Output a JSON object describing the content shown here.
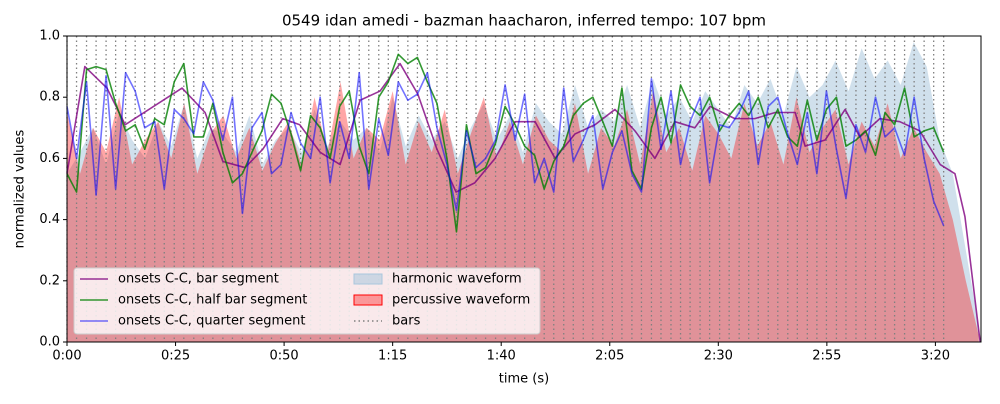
{
  "chart_data": {
    "type": "line",
    "title": "0549 idan amedi - bazman haacharon, inferred tempo: 107 bpm",
    "xlabel": "time (s)",
    "ylabel": "normalized values",
    "xlim": [
      0,
      210.5
    ],
    "ylim": [
      0,
      1
    ],
    "xticks": [
      {
        "value": 0,
        "label": "0:00"
      },
      {
        "value": 25,
        "label": "0:25"
      },
      {
        "value": 50,
        "label": "0:50"
      },
      {
        "value": 75,
        "label": "1:15"
      },
      {
        "value": 100,
        "label": "1:40"
      },
      {
        "value": 125,
        "label": "2:05"
      },
      {
        "value": 150,
        "label": "2:30"
      },
      {
        "value": 175,
        "label": "2:55"
      },
      {
        "value": 200,
        "label": "3:20"
      }
    ],
    "yticks": [
      {
        "value": 0,
        "label": "0.0"
      },
      {
        "value": 0.2,
        "label": "0.2"
      },
      {
        "value": 0.4,
        "label": "0.4"
      },
      {
        "value": 0.6,
        "label": "0.6"
      },
      {
        "value": 0.8,
        "label": "0.8"
      },
      {
        "value": 1,
        "label": "1.0"
      }
    ],
    "legend": "lower left",
    "x": [
      0,
      2.2,
      4.5,
      6.7,
      9.0,
      11.2,
      13.5,
      15.7,
      17.9,
      20.2,
      22.4,
      24.7,
      26.9,
      29.2,
      31.4,
      33.6,
      35.9,
      38.1,
      40.4,
      42.6,
      44.9,
      47.1,
      49.3,
      51.6,
      53.8,
      56.1,
      58.3,
      60.6,
      62.8,
      65.0,
      67.3,
      69.5,
      71.8,
      74.0,
      76.3,
      78.5,
      80.7,
      83.0,
      85.2,
      87.5,
      89.7,
      92.0,
      94.2,
      96.4,
      98.7,
      100.9,
      103.2,
      105.4,
      107.7,
      109.9,
      112.1,
      114.4,
      116.6,
      118.9,
      121.1,
      123.4,
      125.6,
      127.8,
      130.1,
      132.3,
      134.6,
      136.8,
      139.1,
      141.3,
      143.5,
      145.8,
      148.0,
      150.3,
      152.5,
      154.8,
      157.0,
      159.2,
      161.5,
      163.7,
      166.0,
      168.2,
      170.5,
      172.7,
      174.9,
      177.2,
      179.4,
      181.7,
      183.9,
      186.2,
      188.4,
      190.6,
      192.9,
      195.1,
      197.4,
      199.6,
      201.9
    ],
    "series": [
      {
        "name": "onsets C-C, bar segment",
        "kind": "line",
        "color": "#800080",
        "alpha": 0.8,
        "x": [
          0,
          4.1,
          9.2,
          13.4,
          26.5,
          31.8,
          35.9,
          41.0,
          45.1,
          49.7,
          53.6,
          58.3,
          62.9,
          67.5,
          72.1,
          76.7,
          80.8,
          85.2,
          89.6,
          93.9,
          98.6,
          103.2,
          107.8,
          112.4,
          117.0,
          121.6,
          126.2,
          130.8,
          135.4,
          140.0,
          144.6,
          148.1,
          153.8,
          158.4,
          163.1,
          167.7,
          170.0,
          174.6,
          179.2,
          182.6,
          187.2,
          191.8,
          196.4,
          201.1,
          204.5,
          206.8,
          210.3
        ],
        "values": [
          0.55,
          0.9,
          0.83,
          0.71,
          0.83,
          0.75,
          0.59,
          0.57,
          0.63,
          0.73,
          0.71,
          0.62,
          0.58,
          0.79,
          0.82,
          0.91,
          0.81,
          0.63,
          0.49,
          0.52,
          0.6,
          0.72,
          0.72,
          0.6,
          0.68,
          0.71,
          0.76,
          0.69,
          0.6,
          0.72,
          0.7,
          0.77,
          0.73,
          0.73,
          0.75,
          0.75,
          0.64,
          0.66,
          0.76,
          0.67,
          0.73,
          0.72,
          0.69,
          0.58,
          0.55,
          0.41,
          0.0
        ]
      },
      {
        "name": "onsets C-C, half bar segment",
        "kind": "line",
        "color": "#008000",
        "alpha": 0.8,
        "values": [
          0.55,
          0.49,
          0.89,
          0.9,
          0.89,
          0.78,
          0.69,
          0.71,
          0.63,
          0.73,
          0.71,
          0.85,
          0.91,
          0.67,
          0.67,
          0.78,
          0.62,
          0.52,
          0.55,
          0.62,
          0.69,
          0.81,
          0.78,
          0.68,
          0.56,
          0.74,
          0.7,
          0.6,
          0.77,
          0.82,
          0.64,
          0.55,
          0.8,
          0.85,
          0.94,
          0.91,
          0.93,
          0.85,
          0.78,
          0.6,
          0.36,
          0.71,
          0.55,
          0.57,
          0.65,
          0.77,
          0.71,
          0.64,
          0.61,
          0.5,
          0.59,
          0.64,
          0.74,
          0.78,
          0.8,
          0.72,
          0.64,
          0.83,
          0.56,
          0.5,
          0.7,
          0.8,
          0.65,
          0.84,
          0.77,
          0.74,
          0.8,
          0.69,
          0.74,
          0.78,
          0.74,
          0.8,
          0.7,
          0.76,
          0.67,
          0.64,
          0.79,
          0.66,
          0.76,
          0.8,
          0.64,
          0.66,
          0.69,
          0.61,
          0.75,
          0.71,
          0.83,
          0.67,
          0.69,
          0.7,
          0.62
        ]
      },
      {
        "name": "onsets C-C, quarter segment",
        "kind": "line",
        "color": "#0000ff",
        "alpha": 0.55,
        "values": [
          0.77,
          0.6,
          0.85,
          0.48,
          0.87,
          0.5,
          0.88,
          0.82,
          0.7,
          0.72,
          0.5,
          0.76,
          0.73,
          0.68,
          0.85,
          0.79,
          0.66,
          0.8,
          0.42,
          0.7,
          0.75,
          0.55,
          0.58,
          0.75,
          0.65,
          0.6,
          0.8,
          0.52,
          0.72,
          0.6,
          0.88,
          0.5,
          0.73,
          0.61,
          0.85,
          0.79,
          0.81,
          0.88,
          0.7,
          0.58,
          0.43,
          0.69,
          0.57,
          0.6,
          0.66,
          0.84,
          0.66,
          0.81,
          0.52,
          0.6,
          0.49,
          0.83,
          0.59,
          0.66,
          0.74,
          0.5,
          0.62,
          0.69,
          0.55,
          0.49,
          0.86,
          0.63,
          0.82,
          0.58,
          0.72,
          0.8,
          0.52,
          0.71,
          0.7,
          0.75,
          0.82,
          0.58,
          0.77,
          0.8,
          0.68,
          0.58,
          0.75,
          0.55,
          0.82,
          0.63,
          0.47,
          0.71,
          0.62,
          0.8,
          0.67,
          0.7,
          0.61,
          0.8,
          0.6,
          0.46,
          0.38
        ]
      },
      {
        "name": "harmonic waveform",
        "kind": "area",
        "color": "#a9c6dc",
        "alpha": 0.55,
        "x": [
          0,
          3,
          6,
          9,
          12,
          15,
          18,
          21,
          24,
          27,
          30,
          33,
          36,
          39,
          42,
          45,
          48,
          51,
          54,
          57,
          60,
          63,
          66,
          69,
          72,
          75,
          78,
          81,
          84,
          87,
          90,
          93,
          96,
          99,
          102,
          105,
          108,
          111,
          114,
          117,
          120,
          123,
          126,
          129,
          132,
          135,
          138,
          141,
          144,
          147,
          150,
          153,
          156,
          159,
          162,
          165,
          168,
          171,
          174,
          177,
          180,
          183,
          186,
          189,
          192,
          195,
          198,
          201,
          204,
          207,
          210
        ],
        "values": [
          0.55,
          0.62,
          0.7,
          0.58,
          0.75,
          0.66,
          0.6,
          0.72,
          0.64,
          0.78,
          0.6,
          0.7,
          0.68,
          0.62,
          0.74,
          0.58,
          0.66,
          0.7,
          0.62,
          0.76,
          0.64,
          0.72,
          0.66,
          0.7,
          0.62,
          0.8,
          0.64,
          0.74,
          0.66,
          0.72,
          0.6,
          0.7,
          0.78,
          0.66,
          0.74,
          0.62,
          0.78,
          0.72,
          0.68,
          0.84,
          0.7,
          0.76,
          0.72,
          0.84,
          0.7,
          0.86,
          0.74,
          0.8,
          0.72,
          0.82,
          0.76,
          0.7,
          0.84,
          0.78,
          0.86,
          0.74,
          0.9,
          0.8,
          0.84,
          0.92,
          0.82,
          0.96,
          0.86,
          0.92,
          0.84,
          0.98,
          0.9,
          0.66,
          0.55,
          0.3,
          0.05
        ]
      },
      {
        "name": "percussive waveform",
        "kind": "area",
        "color": "#ff0000",
        "alpha": 0.35,
        "x": [
          0,
          3,
          6,
          9,
          12,
          15,
          18,
          21,
          24,
          27,
          30,
          33,
          36,
          39,
          42,
          45,
          48,
          51,
          54,
          57,
          60,
          63,
          66,
          69,
          72,
          75,
          78,
          81,
          84,
          87,
          90,
          93,
          96,
          99,
          102,
          105,
          108,
          111,
          114,
          117,
          120,
          123,
          126,
          129,
          132,
          135,
          138,
          141,
          144,
          147,
          150,
          153,
          156,
          159,
          162,
          165,
          168,
          171,
          174,
          177,
          180,
          183,
          186,
          189,
          192,
          195,
          198,
          201,
          204,
          207,
          210
        ],
        "values": [
          0.75,
          0.55,
          0.7,
          0.62,
          0.8,
          0.58,
          0.66,
          0.72,
          0.6,
          0.78,
          0.55,
          0.68,
          0.74,
          0.6,
          0.7,
          0.56,
          0.65,
          0.72,
          0.58,
          0.8,
          0.62,
          0.85,
          0.6,
          0.7,
          0.66,
          0.82,
          0.58,
          0.72,
          0.62,
          0.76,
          0.55,
          0.68,
          0.8,
          0.6,
          0.72,
          0.58,
          0.74,
          0.66,
          0.62,
          0.78,
          0.55,
          0.7,
          0.64,
          0.76,
          0.58,
          0.82,
          0.62,
          0.7,
          0.56,
          0.74,
          0.68,
          0.6,
          0.78,
          0.64,
          0.72,
          0.58,
          0.8,
          0.62,
          0.7,
          0.76,
          0.58,
          0.72,
          0.64,
          0.78,
          0.6,
          0.7,
          0.62,
          0.55,
          0.4,
          0.2,
          0.02
        ]
      },
      {
        "name": "bars",
        "kind": "vlines",
        "color": "#808080",
        "alpha": 1
      }
    ]
  }
}
